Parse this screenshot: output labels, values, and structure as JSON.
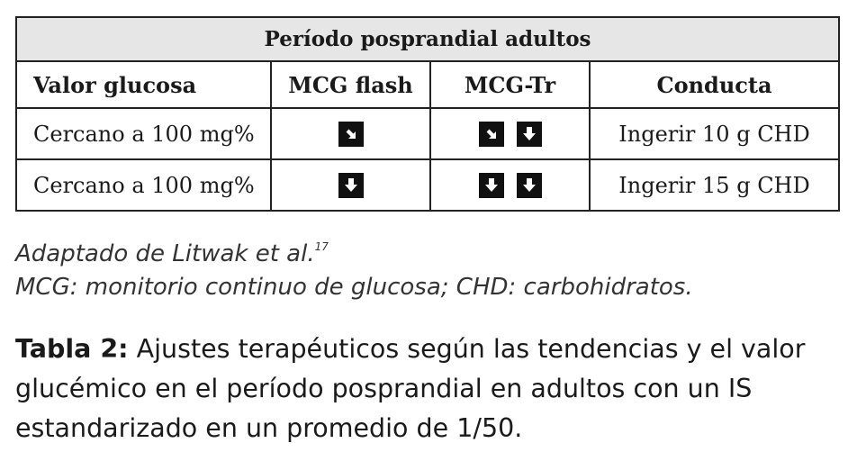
{
  "table": {
    "title": "Período posprandial adultos",
    "headers": [
      "Valor glucosa",
      "MCG flash",
      "MCG-Tr",
      "Conducta"
    ],
    "rows": [
      {
        "valor": "Cercano a 100 mg%",
        "flash_arrows": [
          "down-right-arrow-icon"
        ],
        "tr_arrows": [
          "down-right-arrow-icon",
          "down-arrow-icon"
        ],
        "conducta": "Ingerir 10 g CHD"
      },
      {
        "valor": "Cercano a 100 mg%",
        "flash_arrows": [
          "down-arrow-icon"
        ],
        "tr_arrows": [
          "down-arrow-icon",
          "down-arrow-icon"
        ],
        "conducta": "Ingerir 15 g CHD"
      }
    ]
  },
  "notes": {
    "source": "Adaptado de Litwak et al.",
    "source_ref": "17",
    "abbreviations": "MCG: monitorio continuo de glucosa; CHD: carbohidratos."
  },
  "caption": {
    "label": "Tabla 2:",
    "text": " Ajustes terapéuticos según las tendencias y el valor glucémico en el período posprandial en adultos con un IS estandarizado en un promedio de 1/50."
  },
  "colors": {
    "header_background": "#e6e6e6",
    "border": "#222222",
    "arrow_box": "#111111"
  }
}
